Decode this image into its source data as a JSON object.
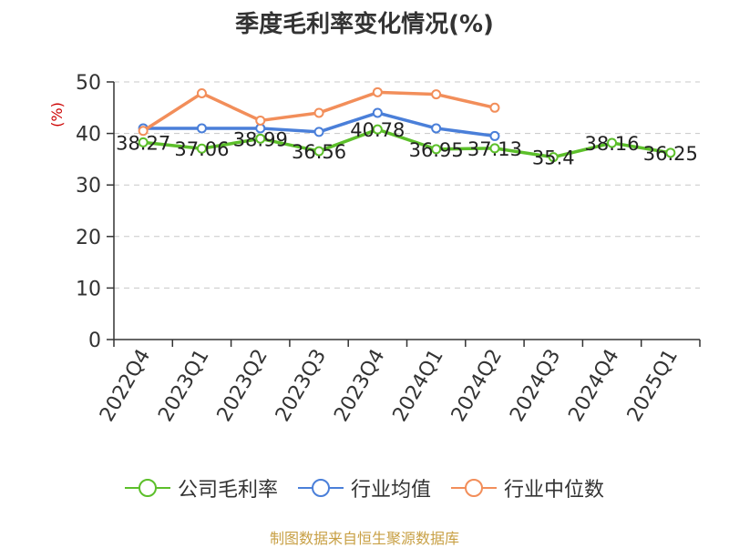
{
  "title": "季度毛利率变化情况(%)",
  "source": "制图数据来自恒生聚源数据库",
  "chart_data": {
    "type": "line",
    "title": "季度毛利率变化情况(%)",
    "ylabel": "(%)",
    "xlabel": "",
    "categories": [
      "2022Q4",
      "2023Q1",
      "2023Q2",
      "2023Q3",
      "2023Q4",
      "2024Q1",
      "2024Q2",
      "2024Q3",
      "2024Q4",
      "2025Q1"
    ],
    "ylim": [
      0,
      50
    ],
    "yticks": [
      0,
      10,
      20,
      30,
      40,
      50
    ],
    "grid": "horizontal-dashed",
    "legend_position": "bottom",
    "series": [
      {
        "name": "公司毛利率",
        "color": "#5cbf2a",
        "values": [
          38.27,
          37.06,
          38.99,
          36.56,
          40.78,
          36.95,
          37.13,
          35.4,
          38.16,
          36.25
        ],
        "labels": [
          "38.27",
          "37.06",
          "38.99",
          "36.56",
          "40.78",
          "36.95",
          "37.13",
          "35.4",
          "38.16",
          "36.25"
        ]
      },
      {
        "name": "行业均值",
        "color": "#4a7fd9",
        "values": [
          41.0,
          41.0,
          41.0,
          40.3,
          44.0,
          41.0,
          39.5,
          null,
          null,
          null
        ]
      },
      {
        "name": "行业中位数",
        "color": "#f28e5a",
        "values": [
          40.5,
          47.8,
          42.5,
          44.0,
          48.0,
          47.6,
          45.0,
          null,
          null,
          null
        ]
      }
    ]
  }
}
